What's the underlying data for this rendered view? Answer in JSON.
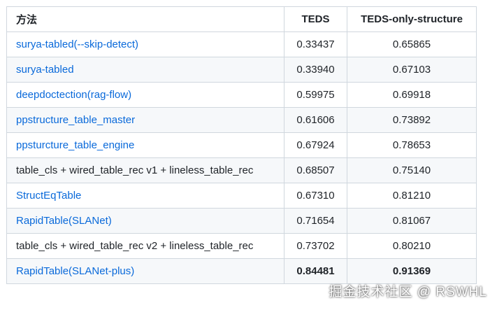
{
  "table": {
    "header": [
      "方法",
      "TEDS",
      "TEDS-only-structure"
    ],
    "rows": [
      {
        "cells": [
          "surya-tabled(--skip-detect)",
          "0.33437",
          "0.65865"
        ],
        "link": true,
        "bold": false
      },
      {
        "cells": [
          "surya-tabled",
          "0.33940",
          "0.67103"
        ],
        "link": true,
        "bold": false
      },
      {
        "cells": [
          "deepdoctection(rag-flow)",
          "0.59975",
          "0.69918"
        ],
        "link": true,
        "bold": false
      },
      {
        "cells": [
          "ppstructure_table_master",
          "0.61606",
          "0.73892"
        ],
        "link": true,
        "bold": false
      },
      {
        "cells": [
          "ppsturcture_table_engine",
          "0.67924",
          "0.78653"
        ],
        "link": true,
        "bold": false
      },
      {
        "cells": [
          "table_cls + wired_table_rec v1 + lineless_table_rec",
          "0.68507",
          "0.75140"
        ],
        "link": false,
        "bold": false
      },
      {
        "cells": [
          "StructEqTable",
          "0.67310",
          "0.81210"
        ],
        "link": true,
        "bold": false
      },
      {
        "cells": [
          "RapidTable(SLANet)",
          "0.71654",
          "0.81067"
        ],
        "link": true,
        "bold": false
      },
      {
        "cells": [
          "table_cls + wired_table_rec v2 + lineless_table_rec",
          "0.73702",
          "0.80210"
        ],
        "link": false,
        "bold": false
      },
      {
        "cells": [
          "RapidTable(SLANet-plus)",
          "0.84481",
          "0.91369"
        ],
        "link": true,
        "bold": true
      }
    ]
  },
  "watermark": "掘金技术社区 @ RSWHL"
}
